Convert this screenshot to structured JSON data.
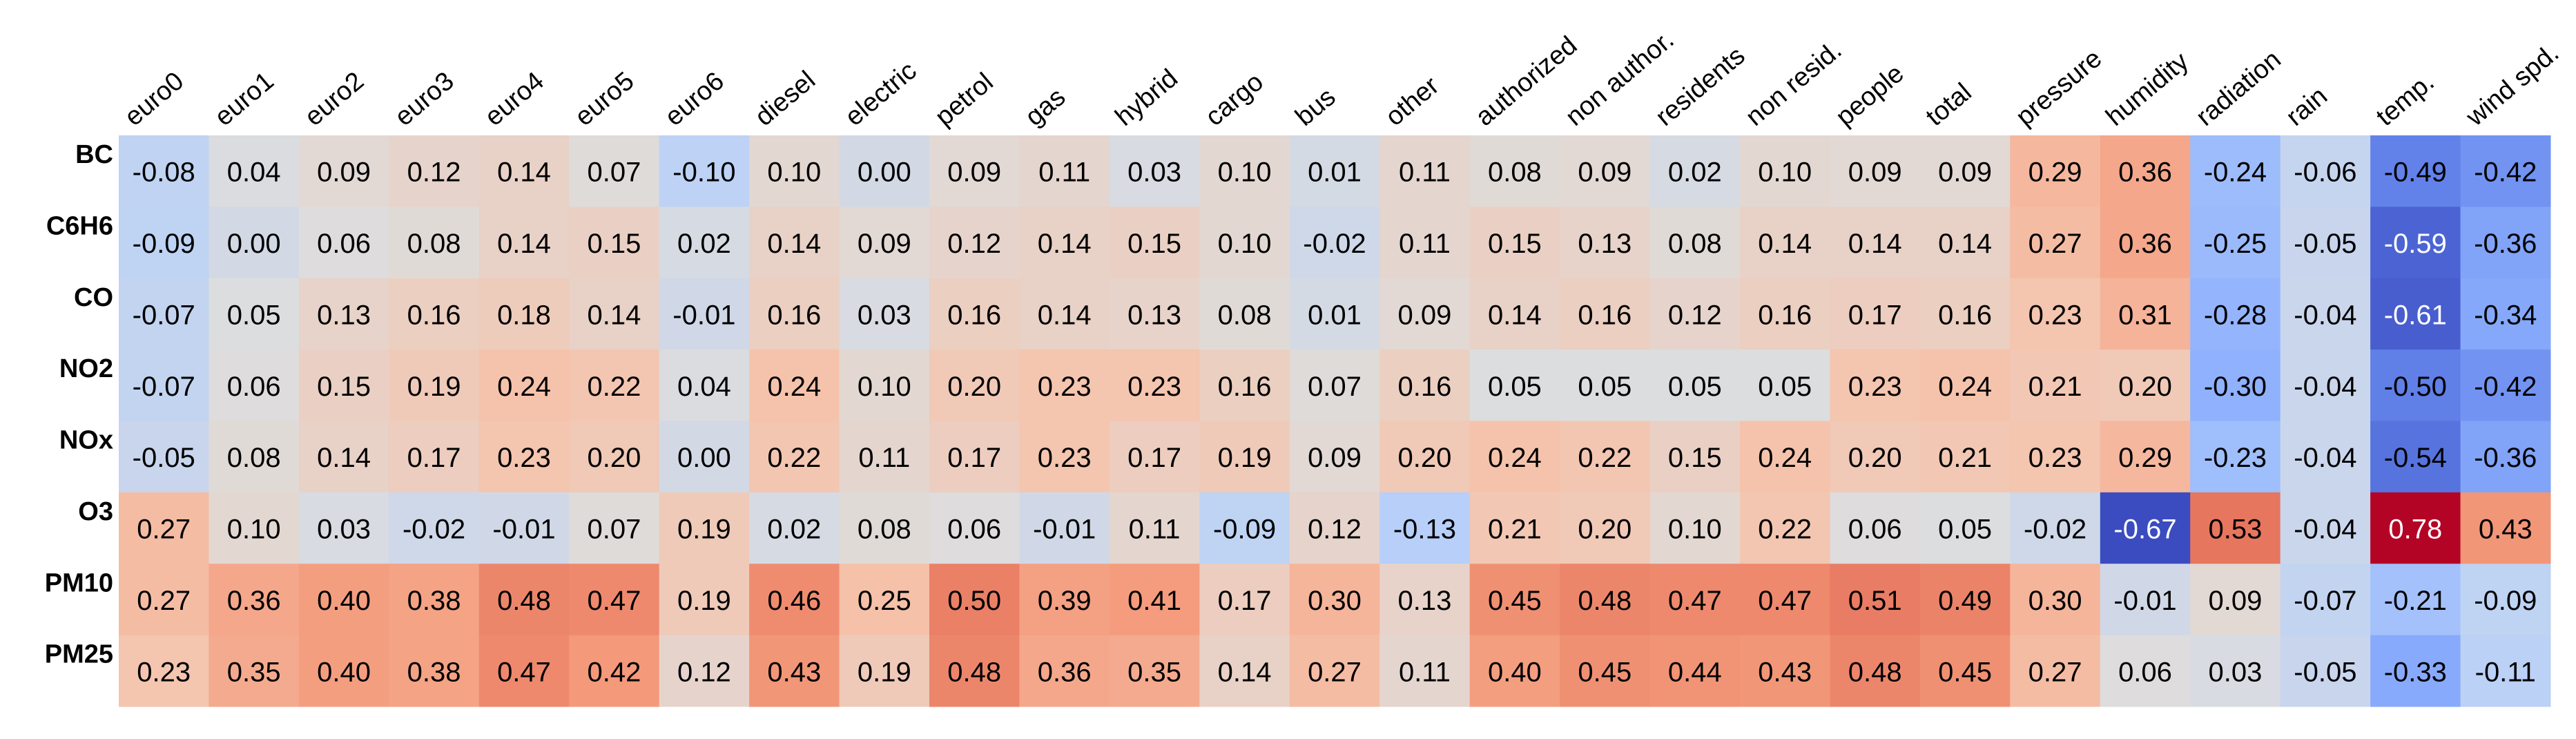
{
  "chart_data": {
    "type": "heatmap",
    "colormap": "coolwarm",
    "x": [
      "euro0",
      "euro1",
      "euro2",
      "euro3",
      "euro4",
      "euro5",
      "euro6",
      "diesel",
      "electric",
      "petrol",
      "gas",
      "hybrid",
      "cargo",
      "bus",
      "other",
      "authorized",
      "non author.",
      "residents",
      "non resid.",
      "people",
      "total",
      "pressure",
      "humidity",
      "radiation",
      "rain",
      "temp.",
      "wind spd."
    ],
    "y": [
      "BC",
      "C6H6",
      "CO",
      "NO2",
      "NOx",
      "O3",
      "PM10",
      "PM25"
    ],
    "values": [
      [
        -0.08,
        0.04,
        0.09,
        0.12,
        0.14,
        0.07,
        -0.1,
        0.1,
        0.0,
        0.09,
        0.11,
        0.03,
        0.1,
        0.01,
        0.11,
        0.08,
        0.09,
        0.02,
        0.1,
        0.09,
        0.09,
        0.29,
        0.36,
        -0.24,
        -0.06,
        -0.49,
        -0.42
      ],
      [
        -0.09,
        0.0,
        0.06,
        0.08,
        0.14,
        0.15,
        0.02,
        0.14,
        0.09,
        0.12,
        0.14,
        0.15,
        0.1,
        -0.02,
        0.11,
        0.15,
        0.13,
        0.08,
        0.14,
        0.14,
        0.14,
        0.27,
        0.36,
        -0.25,
        -0.05,
        -0.59,
        -0.36
      ],
      [
        -0.07,
        0.05,
        0.13,
        0.16,
        0.18,
        0.14,
        -0.01,
        0.16,
        0.03,
        0.16,
        0.14,
        0.13,
        0.08,
        0.01,
        0.09,
        0.14,
        0.16,
        0.12,
        0.16,
        0.17,
        0.16,
        0.23,
        0.31,
        -0.28,
        -0.04,
        -0.61,
        -0.34
      ],
      [
        -0.07,
        0.06,
        0.15,
        0.19,
        0.24,
        0.22,
        0.04,
        0.24,
        0.1,
        0.2,
        0.23,
        0.23,
        0.16,
        0.07,
        0.16,
        0.05,
        0.05,
        0.05,
        0.05,
        0.23,
        0.24,
        0.21,
        0.2,
        -0.3,
        -0.04,
        -0.5,
        -0.42
      ],
      [
        -0.05,
        0.08,
        0.14,
        0.17,
        0.23,
        0.2,
        0.0,
        0.22,
        0.11,
        0.17,
        0.23,
        0.17,
        0.19,
        0.09,
        0.2,
        0.24,
        0.22,
        0.15,
        0.24,
        0.2,
        0.21,
        0.23,
        0.29,
        -0.23,
        -0.04,
        -0.54,
        -0.36
      ],
      [
        0.27,
        0.1,
        0.03,
        -0.02,
        -0.01,
        0.07,
        0.19,
        0.02,
        0.08,
        0.06,
        -0.01,
        0.11,
        -0.09,
        0.12,
        -0.13,
        0.21,
        0.2,
        0.1,
        0.22,
        0.06,
        0.05,
        -0.02,
        -0.67,
        0.53,
        -0.04,
        0.78,
        0.43
      ],
      [
        0.27,
        0.36,
        0.4,
        0.38,
        0.48,
        0.47,
        0.19,
        0.46,
        0.25,
        0.5,
        0.39,
        0.41,
        0.17,
        0.3,
        0.13,
        0.45,
        0.48,
        0.47,
        0.47,
        0.51,
        0.49,
        0.3,
        -0.01,
        0.09,
        -0.07,
        -0.21,
        -0.09
      ],
      [
        0.23,
        0.35,
        0.4,
        0.38,
        0.47,
        0.42,
        0.12,
        0.43,
        0.19,
        0.48,
        0.36,
        0.35,
        0.14,
        0.27,
        0.11,
        0.4,
        0.45,
        0.44,
        0.43,
        0.48,
        0.45,
        0.27,
        0.06,
        0.03,
        -0.05,
        -0.33,
        -0.11
      ]
    ],
    "value_labels": [
      [
        "-0.08",
        "0.04",
        "0.09",
        "0.12",
        "0.14",
        "0.07",
        "-0.10",
        "0.10",
        "0.00",
        "0.09",
        "0.11",
        "0.03",
        "0.10",
        "0.01",
        "0.11",
        "0.08",
        "0.09",
        "0.02",
        "0.10",
        "0.09",
        "0.09",
        "0.29",
        "0.36",
        "-0.24",
        "-0.06",
        "-0.49",
        "-0.42"
      ],
      [
        "-0.09",
        "0.00",
        "0.06",
        "0.08",
        "0.14",
        "0.15",
        "0.02",
        "0.14",
        "0.09",
        "0.12",
        "0.14",
        "0.15",
        "0.10",
        "-0.02",
        "0.11",
        "0.15",
        "0.13",
        "0.08",
        "0.14",
        "0.14",
        "0.14",
        "0.27",
        "0.36",
        "-0.25",
        "-0.05",
        "-0.59",
        "-0.36"
      ],
      [
        "-0.07",
        "0.05",
        "0.13",
        "0.16",
        "0.18",
        "0.14",
        "-0.01",
        "0.16",
        "0.03",
        "0.16",
        "0.14",
        "0.13",
        "0.08",
        "0.01",
        "0.09",
        "0.14",
        "0.16",
        "0.12",
        "0.16",
        "0.17",
        "0.16",
        "0.23",
        "0.31",
        "-0.28",
        "-0.04",
        "-0.61",
        "-0.34"
      ],
      [
        "-0.07",
        "0.06",
        "0.15",
        "0.19",
        "0.24",
        "0.22",
        "0.04",
        "0.24",
        "0.10",
        "0.20",
        "0.23",
        "0.23",
        "0.16",
        "0.07",
        "0.16",
        "0.05",
        "0.05",
        "0.05",
        "0.05",
        "0.23",
        "0.24",
        "0.21",
        "0.20",
        "-0.30",
        "-0.04",
        "-0.50",
        "-0.42"
      ],
      [
        "-0.05",
        "0.08",
        "0.14",
        "0.17",
        "0.23",
        "0.20",
        "0.00",
        "0.22",
        "0.11",
        "0.17",
        "0.23",
        "0.17",
        "0.19",
        "0.09",
        "0.20",
        "0.24",
        "0.22",
        "0.15",
        "0.24",
        "0.20",
        "0.21",
        "0.23",
        "0.29",
        "-0.23",
        "-0.04",
        "-0.54",
        "-0.36"
      ],
      [
        "0.27",
        "0.10",
        "0.03",
        "-0.02",
        "-0.01",
        "0.07",
        "0.19",
        "0.02",
        "0.08",
        "0.06",
        "-0.01",
        "0.11",
        "-0.09",
        "0.12",
        "-0.13",
        "0.21",
        "0.20",
        "0.10",
        "0.22",
        "0.06",
        "0.05",
        "-0.02",
        "-0.67",
        "0.53",
        "-0.04",
        "0.78",
        "0.43"
      ],
      [
        "0.27",
        "0.36",
        "0.40",
        "0.38",
        "0.48",
        "0.47",
        "0.19",
        "0.46",
        "0.25",
        "0.50",
        "0.39",
        "0.41",
        "0.17",
        "0.30",
        "0.13",
        "0.45",
        "0.48",
        "0.47",
        "0.47",
        "0.51",
        "0.49",
        "0.30",
        "-0.01",
        "0.09",
        "-0.07",
        "-0.21",
        "-0.09"
      ],
      [
        "0.23",
        "0.35",
        "0.40",
        "0.38",
        "0.47",
        "0.42",
        "0.12",
        "0.43",
        "0.19",
        "0.48",
        "0.36",
        "0.35",
        "0.14",
        "0.27",
        "0.11",
        "0.40",
        "0.45",
        "0.44",
        "0.43",
        "0.48",
        "0.45",
        "0.27",
        "0.06",
        "0.03",
        "-0.05",
        "-0.33",
        "-0.11"
      ]
    ]
  }
}
